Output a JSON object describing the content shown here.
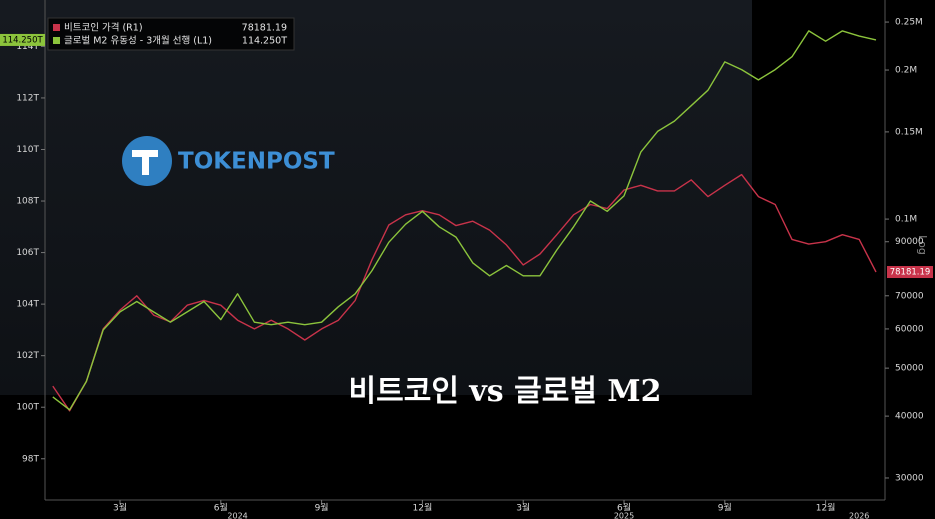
{
  "chart_data": {
    "type": "line",
    "overlay_title": "비트코인 vs 글로벌 M2",
    "watermark": "TOKENPOST",
    "categories": [
      null,
      null,
      null,
      null,
      "3월",
      null,
      null,
      null,
      null,
      null,
      "6월",
      null,
      null,
      null,
      null,
      null,
      "9월",
      null,
      null,
      null,
      null,
      null,
      "12월",
      null,
      null,
      null,
      null,
      null,
      "3월",
      null,
      null,
      null,
      null,
      null,
      "6월",
      null,
      null,
      null,
      null,
      null,
      "9월",
      null,
      null,
      null,
      null,
      null,
      "12월",
      null,
      null,
      null
    ],
    "year_categories": [
      null,
      null,
      null,
      null,
      null,
      null,
      null,
      null,
      null,
      null,
      null,
      "2024",
      null,
      null,
      null,
      null,
      null,
      null,
      null,
      null,
      null,
      null,
      null,
      null,
      null,
      null,
      null,
      null,
      null,
      null,
      null,
      null,
      null,
      null,
      "2025",
      null,
      null,
      null,
      null,
      null,
      null,
      null,
      null,
      null,
      null,
      null,
      null,
      null,
      "2026",
      null
    ],
    "series": [
      {
        "name": "비트코인 가격 (R1)",
        "color": "#c8334a",
        "axis": "y2",
        "last_value_label": "78181.19",
        "values": [
          46000,
          41000,
          47000,
          60000,
          65500,
          70000,
          64000,
          62000,
          67000,
          68500,
          67000,
          62500,
          60000,
          62500,
          60000,
          57000,
          60000,
          62500,
          68500,
          82800,
          97300,
          102000,
          104000,
          102000,
          97000,
          99000,
          95000,
          88700,
          80800,
          85000,
          93000,
          102000,
          107000,
          105000,
          114500,
          117000,
          114000,
          114000,
          120000,
          111000,
          117000,
          123000,
          111000,
          107000,
          91000,
          89000,
          90000,
          93000,
          91000,
          78181.19
        ]
      },
      {
        "name": "글로벌 M2 유동성 - 3개월 선행 (L1)",
        "color": "#8cc43c",
        "axis": "y",
        "last_value_label": "114.250T",
        "values": [
          100.4,
          99.9,
          101.0,
          103.0,
          103.7,
          104.1,
          103.7,
          103.3,
          103.7,
          104.1,
          103.4,
          104.4,
          103.3,
          103.2,
          103.3,
          103.2,
          103.3,
          103.9,
          104.4,
          105.3,
          106.4,
          107.1,
          107.6,
          107.0,
          106.6,
          105.6,
          105.1,
          105.5,
          105.1,
          105.1,
          106.1,
          107.0,
          108.0,
          107.6,
          108.2,
          109.9,
          110.7,
          111.1,
          111.7,
          112.3,
          113.4,
          113.1,
          112.7,
          113.1,
          113.6,
          114.6,
          114.2,
          114.6,
          114.4,
          114.25
        ]
      }
    ],
    "ylim": [
      96.4,
      115.8
    ],
    "yticks": [
      {
        "value": 98,
        "label": "98T"
      },
      {
        "value": 100,
        "label": "100T"
      },
      {
        "value": 102,
        "label": "102T"
      },
      {
        "value": 104,
        "label": "104T"
      },
      {
        "value": 106,
        "label": "106T"
      },
      {
        "value": 108,
        "label": "108T"
      },
      {
        "value": 110,
        "label": "110T"
      },
      {
        "value": 112,
        "label": "112T"
      },
      {
        "value": 114,
        "label": "114T"
      }
    ],
    "y2lim": [
      27080,
      277000
    ],
    "y2log": true,
    "y2_scale_label": "Log",
    "y2ticks": [
      30000,
      40000,
      50000,
      60000,
      70000,
      90000,
      {
        "value": 100000,
        "label": "0.1M"
      },
      {
        "value": 150000,
        "label": "0.15M"
      },
      {
        "value": 200000,
        "label": "0.2M"
      },
      {
        "value": 250000,
        "label": "0.25M"
      }
    ]
  }
}
